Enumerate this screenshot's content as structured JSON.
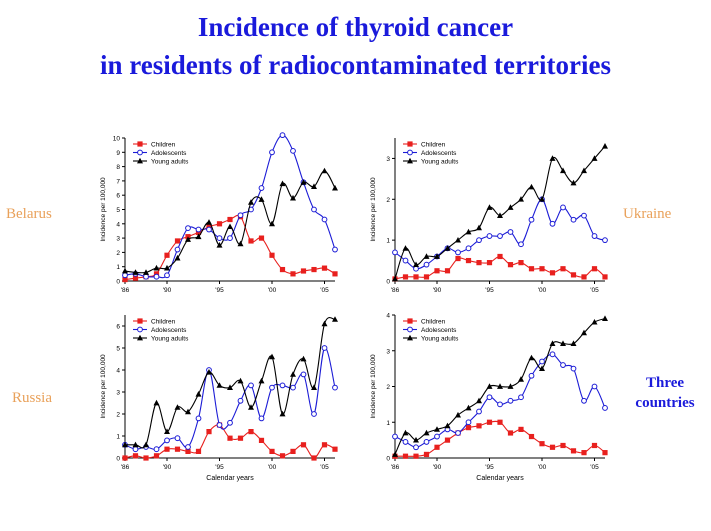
{
  "title": {
    "line1": "Incidence of thyroid cancer",
    "line2": "in residents of radiocontaminated territories"
  },
  "regions": {
    "belarus": "Belarus",
    "ukraine": "Ukraine",
    "russia": "Russia",
    "three": "Three countries"
  },
  "colors": {
    "children": "#e8201e",
    "adolescents": "#1c1cd6",
    "young_adults": "#000000",
    "title": "#1a1adb",
    "country": "#e9a15a"
  },
  "chart_data": [
    {
      "type": "line",
      "xlabel": "",
      "ylabel": "Incidence per 100,000",
      "xlim": [
        1986,
        2006
      ],
      "ylim": [
        0,
        10
      ],
      "x_ticks": [
        1986,
        1990,
        1995,
        2000,
        2005
      ],
      "x_tick_labels": [
        "'86",
        "'90",
        "'95",
        "'00",
        "'05"
      ],
      "y_ticks": [
        0,
        1,
        2,
        3,
        4,
        5,
        6,
        7,
        8,
        9,
        10
      ],
      "legend_position": "top-left",
      "x": [
        1986,
        1987,
        1988,
        1989,
        1990,
        1991,
        1992,
        1993,
        1994,
        1995,
        1996,
        1997,
        1998,
        1999,
        2000,
        2001,
        2002,
        2003,
        2004,
        2005,
        2006
      ],
      "series": [
        {
          "name": "Children",
          "values": [
            0.1,
            0.2,
            0.3,
            0.5,
            1.8,
            2.8,
            3.1,
            3.4,
            3.8,
            4.0,
            4.3,
            4.5,
            2.8,
            3.0,
            1.8,
            0.8,
            0.5,
            0.7,
            0.8,
            0.9,
            0.5
          ]
        },
        {
          "name": "Adolescents",
          "values": [
            0.4,
            0.5,
            0.3,
            0.3,
            0.4,
            2.2,
            3.7,
            3.6,
            3.6,
            3.0,
            3.0,
            4.6,
            5.0,
            6.5,
            9.0,
            10.2,
            9.1,
            6.9,
            5.0,
            4.3,
            2.2
          ]
        },
        {
          "name": "Young adults",
          "values": [
            0.7,
            0.6,
            0.6,
            0.9,
            0.9,
            1.6,
            2.9,
            3.1,
            4.1,
            2.5,
            3.8,
            2.6,
            5.5,
            5.7,
            4.0,
            6.8,
            5.8,
            6.9,
            6.6,
            7.7,
            6.5
          ]
        }
      ]
    },
    {
      "type": "line",
      "xlabel": "",
      "ylabel": "Incidence per 100,000",
      "xlim": [
        1986,
        2006
      ],
      "ylim": [
        0,
        3.5
      ],
      "x_ticks": [
        1986,
        1990,
        1995,
        2000,
        2005
      ],
      "x_tick_labels": [
        "'86",
        "'90",
        "'95",
        "'00",
        "'05"
      ],
      "y_ticks": [
        0,
        1,
        2,
        3
      ],
      "legend_position": "top-left",
      "x": [
        1986,
        1987,
        1988,
        1989,
        1990,
        1991,
        1992,
        1993,
        1994,
        1995,
        1996,
        1997,
        1998,
        1999,
        2000,
        2001,
        2002,
        2003,
        2004,
        2005,
        2006
      ],
      "series": [
        {
          "name": "Children",
          "values": [
            0.05,
            0.1,
            0.1,
            0.1,
            0.25,
            0.25,
            0.55,
            0.5,
            0.45,
            0.45,
            0.6,
            0.4,
            0.45,
            0.3,
            0.3,
            0.2,
            0.3,
            0.15,
            0.1,
            0.3,
            0.1
          ]
        },
        {
          "name": "Adolescents",
          "values": [
            0.7,
            0.5,
            0.3,
            0.4,
            0.6,
            0.8,
            0.7,
            0.8,
            1.0,
            1.1,
            1.1,
            1.2,
            0.9,
            1.5,
            2.0,
            1.4,
            1.8,
            1.5,
            1.6,
            1.1,
            1.0
          ]
        },
        {
          "name": "Young adults",
          "values": [
            0.05,
            0.8,
            0.4,
            0.6,
            0.6,
            0.8,
            1.0,
            1.2,
            1.3,
            1.8,
            1.6,
            1.8,
            2.0,
            2.3,
            2.0,
            3.0,
            2.7,
            2.4,
            2.7,
            3.0,
            3.3
          ]
        }
      ]
    },
    {
      "type": "line",
      "xlabel": "Calendar years",
      "ylabel": "Incidence per 100,000",
      "xlim": [
        1986,
        2006
      ],
      "ylim": [
        0,
        6.5
      ],
      "x_ticks": [
        1986,
        1990,
        1995,
        2000,
        2005
      ],
      "x_tick_labels": [
        "'86",
        "'90",
        "'95",
        "'00",
        "'05"
      ],
      "y_ticks": [
        0,
        1,
        2,
        3,
        4,
        5,
        6
      ],
      "legend_position": "top-left",
      "x": [
        1986,
        1987,
        1988,
        1989,
        1990,
        1991,
        1992,
        1993,
        1994,
        1995,
        1996,
        1997,
        1998,
        1999,
        2000,
        2001,
        2002,
        2003,
        2004,
        2005,
        2006
      ],
      "series": [
        {
          "name": "Children",
          "values": [
            0.0,
            0.1,
            0.0,
            0.1,
            0.4,
            0.4,
            0.3,
            0.3,
            1.2,
            1.5,
            0.9,
            0.9,
            1.2,
            0.8,
            0.3,
            0.1,
            0.3,
            0.6,
            0.0,
            0.6,
            0.4
          ]
        },
        {
          "name": "Adolescents",
          "values": [
            0.6,
            0.4,
            0.5,
            0.4,
            0.8,
            0.9,
            0.5,
            1.8,
            4.0,
            1.5,
            1.6,
            2.6,
            3.3,
            1.8,
            3.2,
            3.3,
            3.2,
            3.8,
            2.0,
            5.0,
            3.2
          ]
        },
        {
          "name": "Young adults",
          "values": [
            0.6,
            0.6,
            0.6,
            2.5,
            1.2,
            2.3,
            2.1,
            2.9,
            3.9,
            3.3,
            3.2,
            3.5,
            2.3,
            3.5,
            4.6,
            2.0,
            3.8,
            4.5,
            3.2,
            6.1,
            6.3
          ]
        }
      ]
    },
    {
      "type": "line",
      "xlabel": "Calendar years",
      "ylabel": "Incidence per 100,000",
      "xlim": [
        1986,
        2006
      ],
      "ylim": [
        0,
        4
      ],
      "x_ticks": [
        1986,
        1990,
        1995,
        2000,
        2005
      ],
      "x_tick_labels": [
        "'86",
        "'90",
        "'95",
        "'00",
        "'05"
      ],
      "y_ticks": [
        0,
        1,
        2,
        3,
        4
      ],
      "legend_position": "top-left",
      "x": [
        1986,
        1987,
        1988,
        1989,
        1990,
        1991,
        1992,
        1993,
        1994,
        1995,
        1996,
        1997,
        1998,
        1999,
        2000,
        2001,
        2002,
        2003,
        2004,
        2005,
        2006
      ],
      "series": [
        {
          "name": "Children",
          "values": [
            0.05,
            0.05,
            0.05,
            0.1,
            0.3,
            0.5,
            0.7,
            0.85,
            0.9,
            1.0,
            1.0,
            0.7,
            0.8,
            0.6,
            0.4,
            0.3,
            0.35,
            0.2,
            0.15,
            0.35,
            0.15
          ]
        },
        {
          "name": "Adolescents",
          "values": [
            0.6,
            0.45,
            0.3,
            0.45,
            0.6,
            0.8,
            0.7,
            1.0,
            1.3,
            1.7,
            1.5,
            1.6,
            1.7,
            2.3,
            2.7,
            2.9,
            2.6,
            2.5,
            1.6,
            2.0,
            1.4
          ]
        },
        {
          "name": "Young adults",
          "values": [
            0.1,
            0.7,
            0.5,
            0.7,
            0.8,
            0.9,
            1.2,
            1.4,
            1.6,
            2.0,
            2.0,
            2.0,
            2.2,
            2.8,
            2.5,
            3.2,
            3.2,
            3.2,
            3.5,
            3.8,
            3.9
          ]
        }
      ]
    }
  ]
}
